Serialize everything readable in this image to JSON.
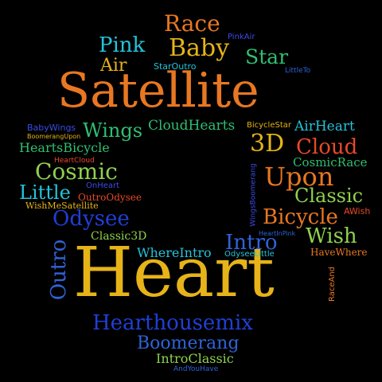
{
  "words": [
    {
      "text": "Heart",
      "color": "#e6b319"
    },
    {
      "text": "Satellite",
      "color": "#e87722"
    },
    {
      "text": "Hearthousemix",
      "color": "#1f3fd6"
    },
    {
      "text": "Boomerang",
      "color": "#2f63d8"
    },
    {
      "text": "Race",
      "color": "#e87722"
    },
    {
      "text": "Baby",
      "color": "#e6b319"
    },
    {
      "text": "Pink",
      "color": "#24c3d9"
    },
    {
      "text": "Star",
      "color": "#2fbf71"
    },
    {
      "text": "Air",
      "color": "#e6b319"
    },
    {
      "text": "PinkAir",
      "color": "#3b4be6"
    },
    {
      "text": "StarOutro",
      "color": "#24c3d9"
    },
    {
      "text": "LittleTo",
      "color": "#2f63d8"
    },
    {
      "text": "Wings",
      "color": "#2fbf71"
    },
    {
      "text": "CloudHearts",
      "color": "#2fbf71"
    },
    {
      "text": "BicycleStar",
      "color": "#e6b319"
    },
    {
      "text": "AirHeart",
      "color": "#24c3d9"
    },
    {
      "text": "BabyWings",
      "color": "#3b4be6"
    },
    {
      "text": "BoomerangUpon",
      "color": "#e6b319"
    },
    {
      "text": "HeartsBicycle",
      "color": "#2fbf71"
    },
    {
      "text": "HeartCloud",
      "color": "#e84a27"
    },
    {
      "text": "3D",
      "color": "#e6b319"
    },
    {
      "text": "Cloud",
      "color": "#e84a27"
    },
    {
      "text": "CosmicRace",
      "color": "#2fbf71"
    },
    {
      "text": "Cosmic",
      "color": "#8fd14f"
    },
    {
      "text": "Upon",
      "color": "#e87722"
    },
    {
      "text": "Little",
      "color": "#24c3d9"
    },
    {
      "text": "OnHeart",
      "color": "#3b4be6"
    },
    {
      "text": "OutroOdysee",
      "color": "#e84a27"
    },
    {
      "text": "WishMeSatellite",
      "color": "#e6b319"
    },
    {
      "text": "Classic",
      "color": "#8fd14f"
    },
    {
      "text": "WingsBoomerang",
      "color": "#3b4be6"
    },
    {
      "text": "Odysee",
      "color": "#1f3fd6"
    },
    {
      "text": "Bicycle",
      "color": "#e87722"
    },
    {
      "text": "AWish",
      "color": "#e84a27"
    },
    {
      "text": "Classic3D",
      "color": "#8fd14f"
    },
    {
      "text": "HeartInPink",
      "color": "#2f63d8"
    },
    {
      "text": "Wish",
      "color": "#8fd14f"
    },
    {
      "text": "Intro",
      "color": "#2f63d8"
    },
    {
      "text": "WhereIntro",
      "color": "#24c3d9"
    },
    {
      "text": "OdyseeLittle",
      "color": "#24c3d9"
    },
    {
      "text": "HaveWhere",
      "color": "#e87722"
    },
    {
      "text": "Outro",
      "color": "#2f63d8"
    },
    {
      "text": "RaceAnd",
      "color": "#e87722"
    },
    {
      "text": "IntroClassic",
      "color": "#8fd14f"
    },
    {
      "text": "AndYouHave",
      "color": "#2f63d8"
    }
  ]
}
